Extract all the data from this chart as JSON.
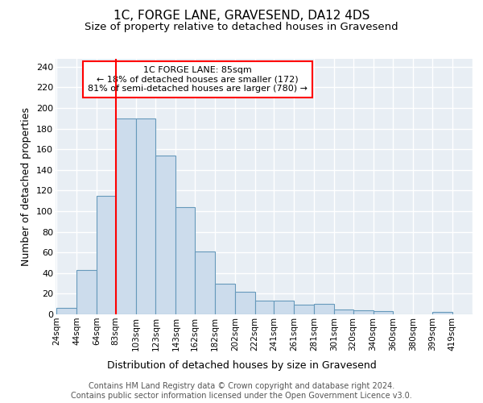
{
  "title_line1": "1C, FORGE LANE, GRAVESEND, DA12 4DS",
  "title_line2": "Size of property relative to detached houses in Gravesend",
  "xlabel": "Distribution of detached houses by size in Gravesend",
  "ylabel": "Number of detached properties",
  "bar_color": "#ccdcec",
  "bar_edge_color": "#6699bb",
  "annotation_line1": "1C FORGE LANE: 85sqm",
  "annotation_line2": "← 18% of detached houses are smaller (172)",
  "annotation_line3": "81% of semi-detached houses are larger (780) →",
  "property_line_x": 83,
  "footer_line1": "Contains HM Land Registry data © Crown copyright and database right 2024.",
  "footer_line2": "Contains public sector information licensed under the Open Government Licence v3.0.",
  "categories": [
    "24sqm",
    "44sqm",
    "64sqm",
    "83sqm",
    "103sqm",
    "123sqm",
    "143sqm",
    "162sqm",
    "182sqm",
    "202sqm",
    "222sqm",
    "241sqm",
    "261sqm",
    "281sqm",
    "301sqm",
    "320sqm",
    "340sqm",
    "360sqm",
    "380sqm",
    "399sqm",
    "419sqm"
  ],
  "bar_left_edges": [
    24,
    44,
    64,
    83,
    103,
    123,
    143,
    162,
    182,
    202,
    222,
    241,
    261,
    281,
    301,
    320,
    340,
    360,
    380,
    399,
    419
  ],
  "bar_widths": [
    20,
    20,
    19,
    20,
    20,
    20,
    19,
    20,
    20,
    20,
    19,
    20,
    20,
    20,
    19,
    20,
    20,
    20,
    19,
    20,
    20
  ],
  "values": [
    6,
    43,
    115,
    190,
    190,
    154,
    104,
    61,
    30,
    22,
    13,
    13,
    9,
    10,
    5,
    4,
    3,
    0,
    0,
    2,
    0
  ],
  "ylim": [
    0,
    248
  ],
  "yticks": [
    0,
    20,
    40,
    60,
    80,
    100,
    120,
    140,
    160,
    180,
    200,
    220,
    240
  ],
  "background_color": "#e8eef4",
  "grid_color": "#ffffff",
  "fig_bg": "#ffffff",
  "title_fontsize": 11,
  "subtitle_fontsize": 9.5,
  "axis_label_fontsize": 9,
  "tick_fontsize": 8,
  "footer_fontsize": 7
}
